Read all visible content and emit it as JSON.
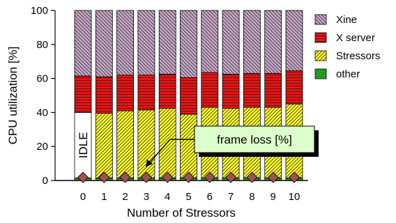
{
  "chart_data": {
    "type": "bar",
    "stacked": true,
    "xlabel": "Number of Stressors",
    "ylabel": "CPU utilization [%]",
    "ylim": [
      0,
      100
    ],
    "yticks": [
      0,
      20,
      40,
      60,
      80,
      100
    ],
    "categories": [
      "0",
      "1",
      "2",
      "3",
      "4",
      "5",
      "6",
      "7",
      "8",
      "9",
      "10"
    ],
    "series": [
      {
        "name": "other",
        "color": "#22aa22",
        "pattern": "dots",
        "values": [
          1.5,
          1.5,
          1.5,
          1.5,
          1.5,
          1.5,
          1.5,
          1.5,
          1.5,
          1.5,
          1.5
        ]
      },
      {
        "name": "Stressors",
        "color": "#ffff22",
        "pattern": "diagonal-up",
        "values": [
          0,
          38,
          39.5,
          40,
          41,
          37.5,
          41.5,
          41,
          41.5,
          41.5,
          43.5
        ]
      },
      {
        "name": "X server",
        "color": "#ee1111",
        "pattern": "horizontal",
        "values": [
          21.5,
          21.5,
          21,
          20.5,
          20,
          21.5,
          20.5,
          20,
          20,
          20,
          19.5
        ]
      },
      {
        "name": "Xine",
        "color": "#c8a8c8",
        "pattern": "diagonal-down",
        "values": [
          38.5,
          39,
          38,
          38,
          37.5,
          39.5,
          36.5,
          37.5,
          37,
          37,
          35.5
        ]
      }
    ],
    "idle": {
      "label": "IDLE",
      "category": "0",
      "value": 38.5
    },
    "frame_loss": {
      "name": "frame loss [%]",
      "color": "#a05050",
      "values": [
        1,
        1,
        1,
        1,
        1,
        1,
        1,
        1,
        1,
        1,
        1
      ]
    },
    "legend_order": [
      "Xine",
      "X server",
      "Stressors",
      "other"
    ],
    "legend_position": "right"
  }
}
